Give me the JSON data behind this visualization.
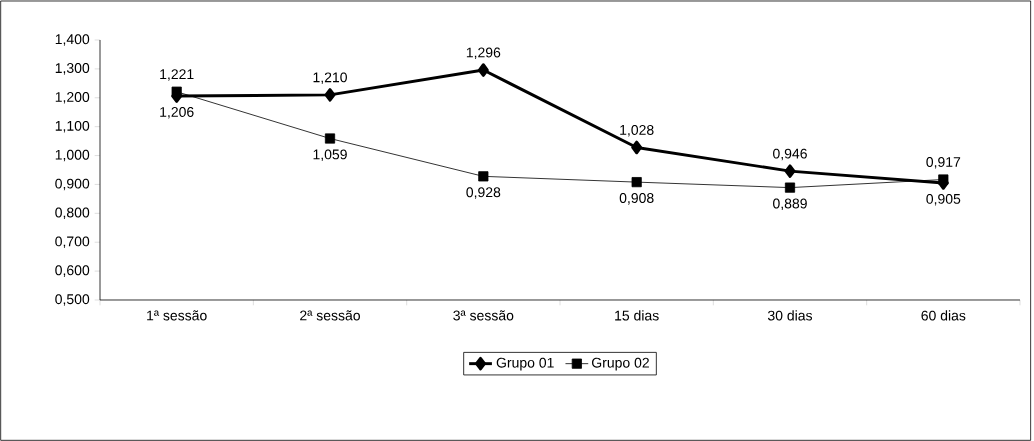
{
  "chart_data": {
    "type": "line",
    "categories": [
      "1ª sessão",
      "2ª sessão",
      "3ª sessão",
      "15 dias",
      "30 dias",
      "60 dias"
    ],
    "series": [
      {
        "name": "Grupo 01",
        "color": "#000000",
        "marker": "diamond",
        "values": [
          1.206,
          1.21,
          1.296,
          1.028,
          0.946,
          0.905
        ],
        "value_labels": [
          "1,206",
          "1,210",
          "1,296",
          "1,028",
          "0,946",
          "0,905"
        ]
      },
      {
        "name": "Grupo 02",
        "color": "#000000",
        "marker": "square",
        "values": [
          1.221,
          1.059,
          0.928,
          0.908,
          0.889,
          0.917
        ],
        "value_labels": [
          "1,221",
          "1,059",
          "0,928",
          "0,908",
          "0,889",
          "0,917"
        ]
      }
    ],
    "ylim": [
      0.5,
      1.4
    ],
    "yticks": [
      {
        "value": 0.5,
        "label": "0,500"
      },
      {
        "value": 0.6,
        "label": "0,600"
      },
      {
        "value": 0.7,
        "label": "0,700"
      },
      {
        "value": 0.8,
        "label": "0,800"
      },
      {
        "value": 0.9,
        "label": "0,900"
      },
      {
        "value": 1.0,
        "label": "1,000"
      },
      {
        "value": 1.1,
        "label": "1,100"
      },
      {
        "value": 1.2,
        "label": "1,200"
      },
      {
        "value": 1.3,
        "label": "1,300"
      },
      {
        "value": 1.4,
        "label": "1,400"
      }
    ],
    "grid": false,
    "legend": "bottom",
    "line_style": "solid"
  }
}
